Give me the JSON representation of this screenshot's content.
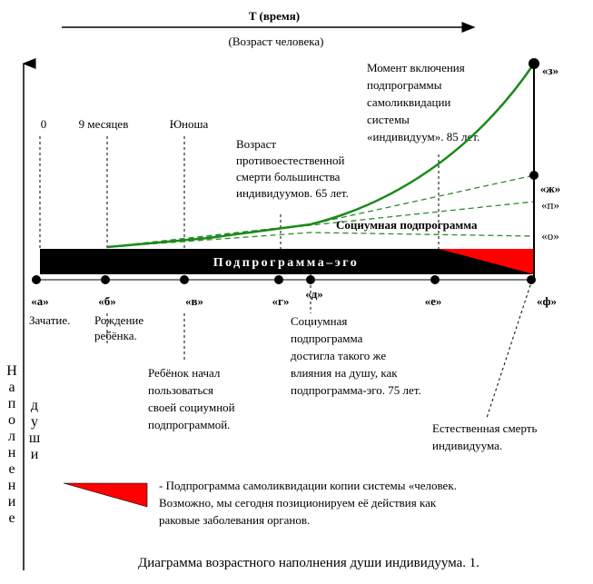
{
  "header": {
    "time_label": "T (время)",
    "age_label": "(Возраст человека)"
  },
  "axis": {
    "vertical_label_1": "Наполнение",
    "vertical_label_2": "души"
  },
  "top_labels": {
    "zero": "0",
    "nine_months": "9 месяцев",
    "youth": "Юноша"
  },
  "annotations": {
    "unnatural_death": [
      "Возраст",
      "противоестественной",
      "смерти большинства",
      "индивидуумов. 65 лет."
    ],
    "self_destruct_moment": [
      "Момент включения",
      "подпрограммы",
      "самоликвидации",
      "системы",
      "«индивидуум». 85 лет."
    ],
    "social_equal": [
      "Социумная",
      "подпрограмма",
      "достигла  такого же",
      "влияния  на  душу, как",
      "подпрограмма-эго.  75 лет."
    ],
    "child_social": [
      "Ребёнок  начал",
      "пользоваться",
      "своей социумной",
      "подпрограммой."
    ],
    "natural_death": [
      "Естественная  смерть",
      "индивидуума."
    ]
  },
  "bars": {
    "ego_label": "Подпрограмма–эго",
    "social_label": "Социумная подпрограмма"
  },
  "points": {
    "a": "«а»",
    "b": "«б»",
    "v": "«в»",
    "g": "«г»",
    "d": "«д»",
    "e": "«е»",
    "f": "«ф»",
    "z": "«з»",
    "zh": "«ж»",
    "p": "«п»",
    "o": "«о»"
  },
  "point_captions": {
    "a": "Зачатие.",
    "b": [
      "Рождение",
      "ребёнка."
    ]
  },
  "legend": {
    "text": [
      "- Подпрограмма  самоликвидации копии системы «человек.",
      "Возможно, мы сегодня позиционируем её действия как",
      "раковые  заболевания органов."
    ]
  },
  "caption": "Диаграмма возрастного наполнения души индивидуума. 1.",
  "colors": {
    "curve": "#1a8a1a",
    "dashed": "#2e8b2e",
    "self_destruct": "#ff0000",
    "ego_bar": "#000000"
  }
}
